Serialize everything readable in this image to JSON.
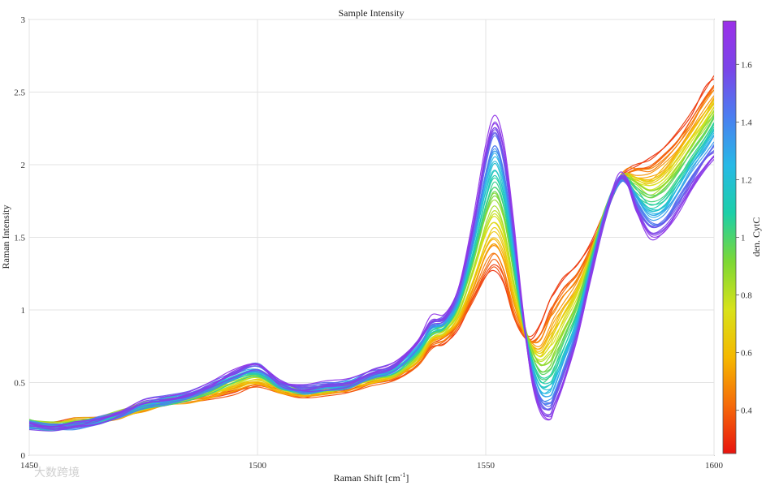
{
  "watermark": "大数跨境",
  "chart_data": {
    "type": "line",
    "title": "Sample Intensity",
    "xlabel": "Raman Shift [cm",
    "xlabel_sup": "-1",
    "xlabel_end": "]",
    "ylabel": "Raman Intensity",
    "xlim": [
      1450,
      1600
    ],
    "ylim": [
      0,
      3
    ],
    "x_ticks": [
      1450,
      1500,
      1550,
      1600
    ],
    "x_tick_labels": [
      "1450",
      "1500",
      "1550",
      "1600"
    ],
    "y_ticks": [
      0,
      0.5,
      1,
      1.5,
      2,
      2.5,
      3
    ],
    "y_tick_labels": [
      "0",
      "0.5",
      "1",
      "1.5",
      "2",
      "2.5",
      "3"
    ],
    "grid": true,
    "colorbar": {
      "label": "den. CytC",
      "range": [
        0.25,
        1.75
      ],
      "ticks": [
        0.4,
        0.6,
        0.8,
        1,
        1.2,
        1.4,
        1.6
      ],
      "tick_labels": [
        "0.4",
        "0.6",
        "0.8",
        "1",
        "1.2",
        "1.4",
        "1.6"
      ],
      "colormap": [
        "#e8140e",
        "#f56a0a",
        "#f5b800",
        "#d8e21a",
        "#7cd835",
        "#1ccfa8",
        "#27b9e6",
        "#4a7ff0",
        "#7a45e8",
        "#9b30e8"
      ]
    },
    "anchor_x": [
      1450,
      1455,
      1460,
      1465,
      1470,
      1475,
      1480,
      1485,
      1490,
      1495,
      1500,
      1505,
      1510,
      1515,
      1520,
      1525,
      1530,
      1535,
      1538,
      1541,
      1544,
      1547,
      1550,
      1552,
      1554,
      1556,
      1558,
      1560,
      1562,
      1564,
      1565,
      1567,
      1570,
      1573,
      1576,
      1579,
      1581,
      1583,
      1586,
      1589,
      1592,
      1595,
      1598,
      1600
    ],
    "series": [
      {
        "value": 0.3,
        "y": [
          0.22,
          0.22,
          0.24,
          0.25,
          0.27,
          0.32,
          0.36,
          0.38,
          0.4,
          0.44,
          0.48,
          0.44,
          0.42,
          0.44,
          0.46,
          0.5,
          0.53,
          0.62,
          0.74,
          0.78,
          0.88,
          1.05,
          1.22,
          1.28,
          1.18,
          0.95,
          0.84,
          0.8,
          0.9,
          1.06,
          1.12,
          1.22,
          1.3,
          1.45,
          1.66,
          1.88,
          1.96,
          2.0,
          2.04,
          2.12,
          2.22,
          2.35,
          2.52,
          2.6
        ]
      },
      {
        "value": 0.6,
        "y": [
          0.23,
          0.21,
          0.23,
          0.25,
          0.28,
          0.33,
          0.37,
          0.39,
          0.43,
          0.48,
          0.52,
          0.46,
          0.43,
          0.45,
          0.47,
          0.52,
          0.56,
          0.66,
          0.8,
          0.84,
          0.95,
          1.18,
          1.44,
          1.52,
          1.4,
          1.12,
          0.9,
          0.76,
          0.72,
          0.82,
          0.88,
          1.0,
          1.15,
          1.4,
          1.68,
          1.9,
          1.94,
          1.92,
          1.9,
          1.96,
          2.08,
          2.22,
          2.36,
          2.44
        ]
      },
      {
        "value": 0.95,
        "y": [
          0.22,
          0.2,
          0.22,
          0.24,
          0.28,
          0.34,
          0.37,
          0.4,
          0.45,
          0.52,
          0.56,
          0.48,
          0.44,
          0.46,
          0.48,
          0.54,
          0.58,
          0.7,
          0.84,
          0.88,
          1.02,
          1.32,
          1.68,
          1.82,
          1.66,
          1.3,
          0.94,
          0.7,
          0.58,
          0.6,
          0.66,
          0.8,
          1.02,
          1.34,
          1.66,
          1.88,
          1.9,
          1.84,
          1.78,
          1.82,
          1.94,
          2.08,
          2.22,
          2.32
        ]
      },
      {
        "value": 1.3,
        "y": [
          0.21,
          0.19,
          0.21,
          0.24,
          0.28,
          0.35,
          0.38,
          0.41,
          0.47,
          0.55,
          0.59,
          0.49,
          0.45,
          0.47,
          0.49,
          0.55,
          0.6,
          0.74,
          0.88,
          0.92,
          1.08,
          1.44,
          1.9,
          2.08,
          1.9,
          1.46,
          0.98,
          0.62,
          0.42,
          0.4,
          0.46,
          0.62,
          0.9,
          1.28,
          1.64,
          1.88,
          1.88,
          1.76,
          1.64,
          1.66,
          1.8,
          1.96,
          2.1,
          2.18
        ]
      },
      {
        "value": 1.7,
        "y": [
          0.2,
          0.18,
          0.2,
          0.23,
          0.28,
          0.36,
          0.38,
          0.42,
          0.49,
          0.57,
          0.62,
          0.5,
          0.46,
          0.48,
          0.5,
          0.57,
          0.62,
          0.78,
          0.93,
          0.96,
          1.14,
          1.56,
          2.12,
          2.32,
          2.12,
          1.62,
          1.02,
          0.54,
          0.3,
          0.24,
          0.3,
          0.48,
          0.8,
          1.22,
          1.62,
          1.9,
          1.88,
          1.68,
          1.5,
          1.52,
          1.66,
          1.82,
          1.96,
          2.02
        ]
      }
    ],
    "interpolated_series_count": 48
  }
}
